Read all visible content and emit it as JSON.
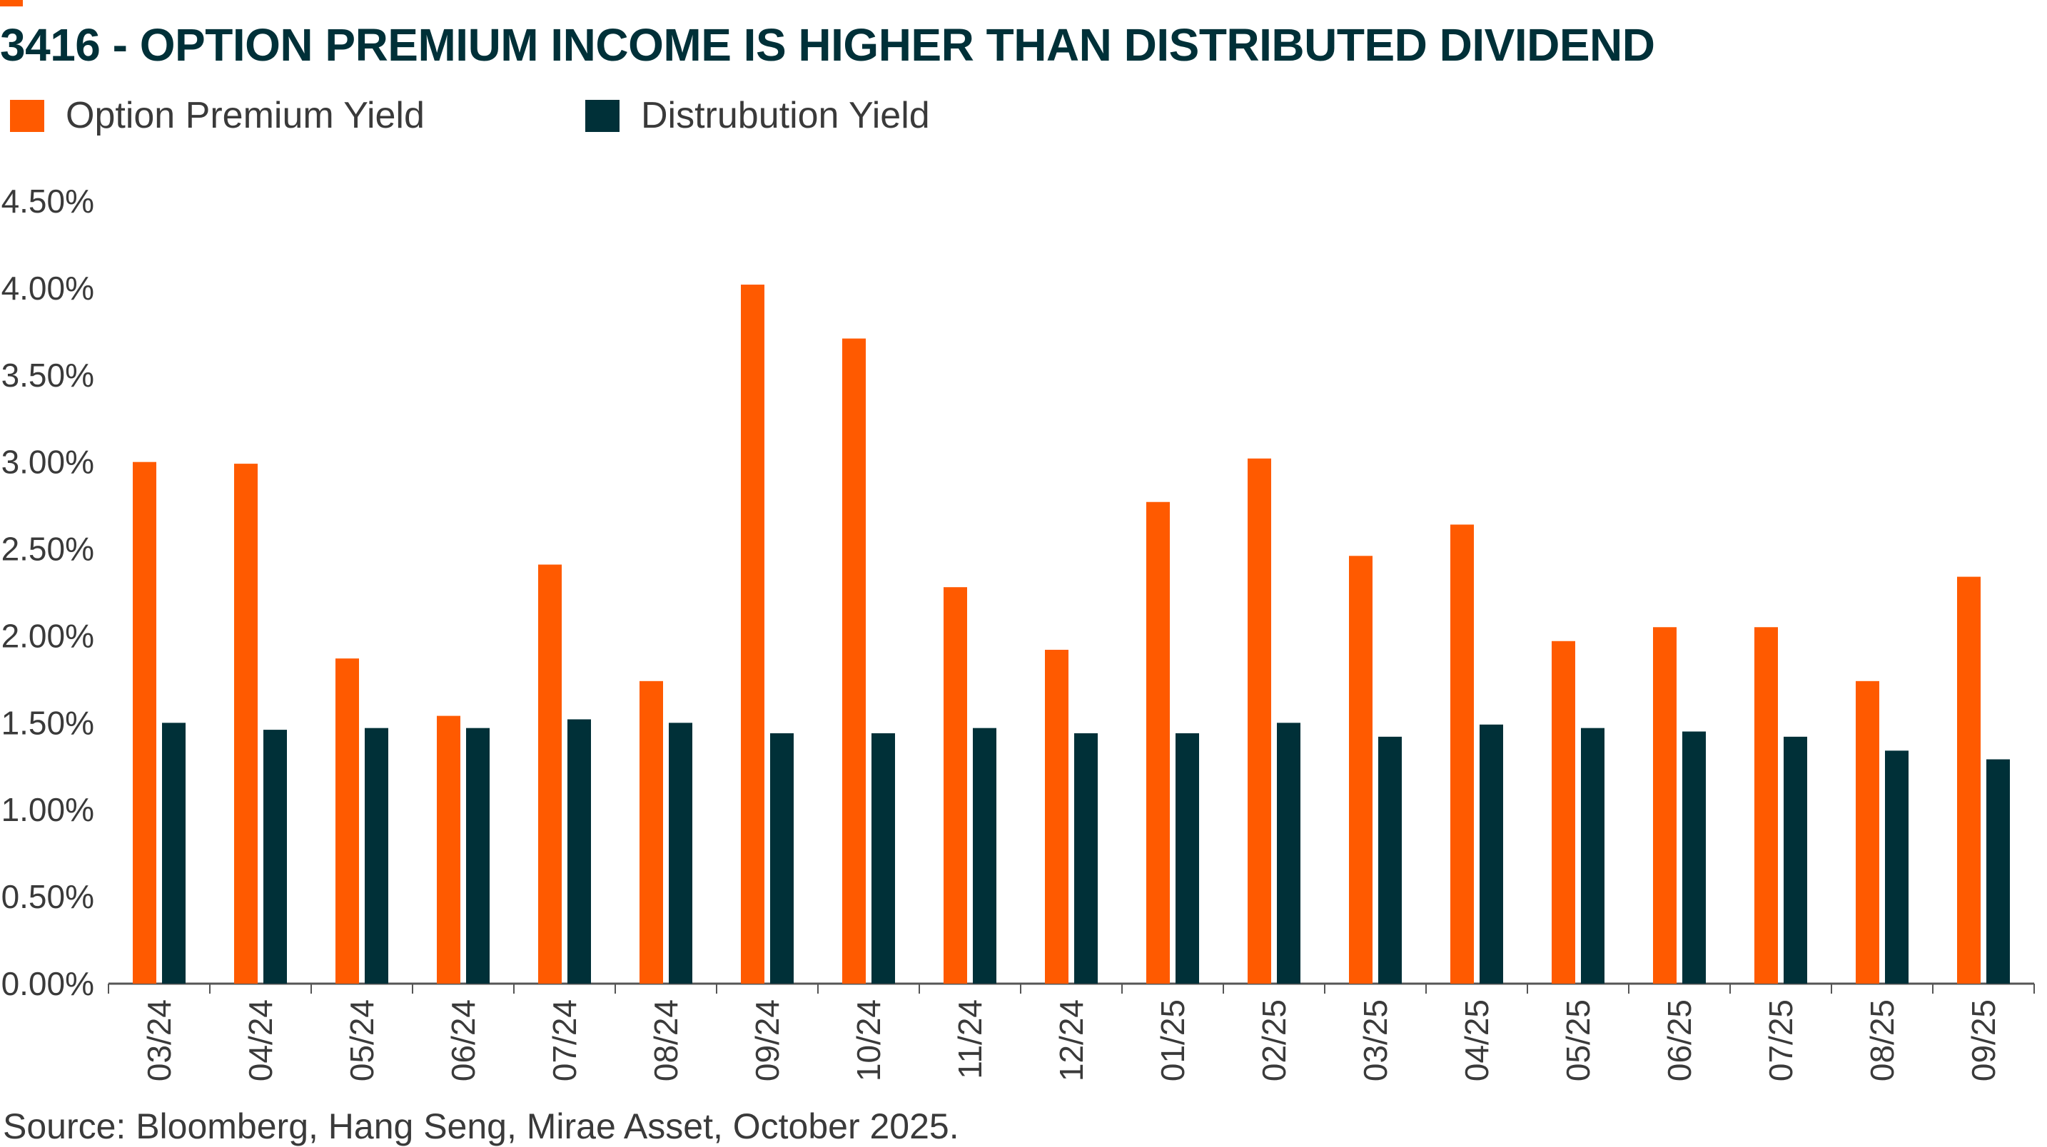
{
  "title": "3416 - OPTION PREMIUM INCOME IS HIGHER THAN DISTRIBUTED DIVIDEND",
  "source": "Source: Bloomberg, Hang Seng, Mirae Asset, October 2025.",
  "colors": {
    "accent": "#ff5a00",
    "option_premium": "#ff5a00",
    "distribution": "#003038",
    "axis": "#555555",
    "title": "#003038"
  },
  "legend": {
    "option_premium_label": "Option Premium Yield",
    "distribution_label": "Distrubution Yield"
  },
  "chart_data": {
    "type": "bar",
    "title": "3416 - OPTION PREMIUM INCOME IS HIGHER THAN DISTRIBUTED DIVIDEND",
    "xlabel": "",
    "ylabel": "",
    "ylim": [
      0,
      4.5
    ],
    "yticks": [
      0,
      0.5,
      1.0,
      1.5,
      2.0,
      2.5,
      3.0,
      3.5,
      4.0,
      4.5
    ],
    "ytick_labels": [
      "0.00%",
      "0.50%",
      "1.00%",
      "1.50%",
      "2.00%",
      "2.50%",
      "3.00%",
      "3.50%",
      "4.00%",
      "4.50%"
    ],
    "grid": false,
    "legend_position": "top-left",
    "categories": [
      "03/24",
      "04/24",
      "05/24",
      "06/24",
      "07/24",
      "08/24",
      "09/24",
      "10/24",
      "11/24",
      "12/24",
      "01/25",
      "02/25",
      "03/25",
      "04/25",
      "05/25",
      "06/25",
      "07/25",
      "08/25",
      "09/25"
    ],
    "series": [
      {
        "name": "Option Premium Yield",
        "values": [
          3.0,
          2.99,
          1.87,
          1.54,
          2.41,
          1.74,
          4.02,
          3.71,
          2.28,
          1.92,
          2.77,
          3.02,
          2.46,
          2.64,
          1.97,
          2.05,
          2.05,
          1.74,
          2.34
        ]
      },
      {
        "name": "Distrubution Yield",
        "values": [
          1.5,
          1.46,
          1.47,
          1.47,
          1.52,
          1.5,
          1.44,
          1.44,
          1.47,
          1.44,
          1.44,
          1.5,
          1.42,
          1.49,
          1.47,
          1.45,
          1.42,
          1.34,
          1.29
        ]
      }
    ]
  }
}
